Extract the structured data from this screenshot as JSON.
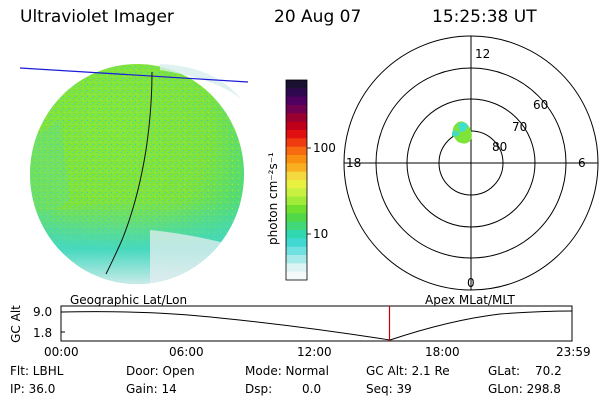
{
  "header": {
    "title": "Ultraviolet Imager",
    "date": "20 Aug 07",
    "time": "15:25:38 UT"
  },
  "colorbar": {
    "label": "photon cm⁻²s⁻¹",
    "ticks": [
      "100",
      "10"
    ],
    "colors_top_to_bottom": [
      "#1a1030",
      "#300850",
      "#500060",
      "#700050",
      "#9a0030",
      "#c0001a",
      "#e01010",
      "#f03a10",
      "#f86a10",
      "#fa9010",
      "#f8b020",
      "#f4d840",
      "#e8f040",
      "#c8f040",
      "#a0ea38",
      "#70e030",
      "#50d848",
      "#40d878",
      "#30d8b0",
      "#40d8d0",
      "#70e0e0",
      "#a8eaea",
      "#dcf4f4",
      "#f4fafa"
    ]
  },
  "polar_plot": {
    "mlt_labels": {
      "top": "12",
      "left": "18",
      "right": "6",
      "bottom": "0"
    },
    "lat_labels": [
      "60",
      "70",
      "80"
    ]
  },
  "projection_labels": {
    "left": "Geographic Lat/Lon",
    "right": "Apex MLat/MLT"
  },
  "altitude_strip": {
    "ylabel": "GC Alt",
    "yticks": [
      "9.0",
      "1.8"
    ],
    "xticks": [
      "00:00",
      "06:00",
      "12:00",
      "18:00",
      "23:59"
    ],
    "current_time_hours": 15.43
  },
  "info": {
    "flt": "Flt: LBHL",
    "ip": "IP: 36.0",
    "door": "Door: Open",
    "gain": "Gain: 14",
    "mode": "Mode: Normal",
    "dsp": "Dsp:",
    "dsp_val": "0.0",
    "gcalt": "GC Alt: 2.1 Re",
    "seq": "Seq: 39",
    "glat": "GLat:",
    "glat_val": "70.2",
    "glon": "GLon: 298.8"
  },
  "colors": {
    "aurora_green": "#7ee43a",
    "cyan": "#3ee0cc",
    "pale": "#dde9ec",
    "limb_line": "#1b1bd8",
    "time_marker": "#d00000"
  }
}
